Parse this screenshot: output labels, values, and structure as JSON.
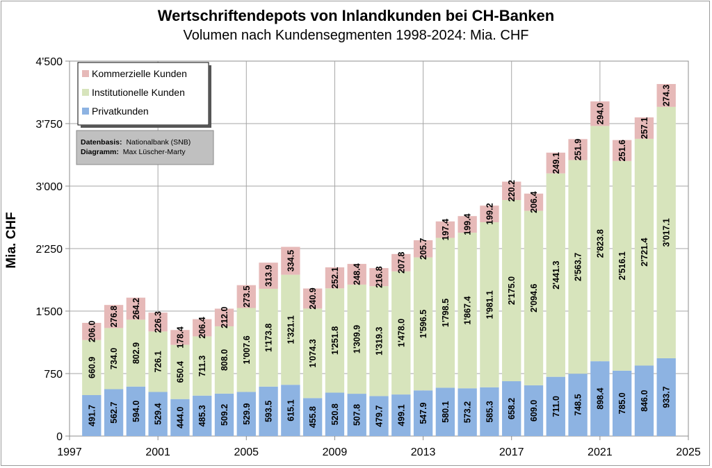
{
  "chart_data": {
    "type": "bar",
    "stacked": true,
    "title": "Wertschriftendepots von Inlandkunden bei CH-Banken",
    "subtitle": "Volumen nach Kundensegmenten 1998-2024: Mia. CHF",
    "ylabel": "Mia. CHF",
    "xlabel": "",
    "ylim": [
      0,
      4500
    ],
    "xlim": [
      1997,
      2025
    ],
    "grid": true,
    "legend_position": "top-left",
    "x_ticks": [
      "1997",
      "2001",
      "2005",
      "2009",
      "2013",
      "2017",
      "2021",
      "2025"
    ],
    "y_ticks": [
      "0",
      "750",
      "1'500",
      "2'250",
      "3'000",
      "3'750",
      "4'500"
    ],
    "x": [
      1998,
      1999,
      2000,
      2001,
      2002,
      2003,
      2004,
      2005,
      2006,
      2007,
      2008,
      2009,
      2010,
      2011,
      2012,
      2013,
      2014,
      2015,
      2016,
      2017,
      2018,
      2019,
      2020,
      2021,
      2022,
      2023,
      2024
    ],
    "series": [
      {
        "name": "Privatkunden",
        "color": "#8db3e2",
        "values": [
          491.7,
          562.7,
          594.0,
          529.4,
          444.0,
          485.3,
          509.2,
          529.9,
          593.5,
          615.1,
          455.8,
          520.8,
          507.8,
          479.7,
          499.1,
          547.9,
          580.1,
          573.2,
          585.3,
          658.2,
          609.0,
          711.0,
          748.5,
          898.4,
          785.0,
          846.0,
          933.7
        ],
        "labels": [
          "491.7",
          "562.7",
          "594.0",
          "529.4",
          "444.0",
          "485.3",
          "509.2",
          "529.9",
          "593.5",
          "615.1",
          "455.8",
          "520.8",
          "507.8",
          "479.7",
          "499.1",
          "547.9",
          "580.1",
          "573.2",
          "585.3",
          "658.2",
          "609.0",
          "711.0",
          "748.5",
          "898.4",
          "785.0",
          "846.0",
          "933.7"
        ]
      },
      {
        "name": "Institutionelle Kunden",
        "color": "#d7e4bc",
        "values": [
          660.9,
          734.0,
          802.9,
          726.1,
          650.4,
          711.3,
          808.0,
          1007.6,
          1173.8,
          1321.1,
          1074.3,
          1251.8,
          1309.9,
          1319.3,
          1478.0,
          1596.5,
          1798.5,
          1867.4,
          1981.1,
          2175.0,
          2094.6,
          2441.3,
          2563.7,
          2823.8,
          2516.1,
          2721.4,
          3017.1
        ],
        "labels": [
          "660.9",
          "734.0",
          "802.9",
          "726.1",
          "650.4",
          "711.3",
          "808.0",
          "1'007.6",
          "1'173.8",
          "1'321.1",
          "1'074.3",
          "1'251.8",
          "1'309.9",
          "1'319.3",
          "1'478.0",
          "1'596.5",
          "1'798.5",
          "1'867.4",
          "1'981.1",
          "2'175.0",
          "2'094.6",
          "2'441.3",
          "2'563.7",
          "2'823.8",
          "2'516.1",
          "2'721.4",
          "3'017.1"
        ]
      },
      {
        "name": "Kommerzielle Kunden",
        "color": "#e6b9b8",
        "values": [
          206.0,
          276.8,
          264.2,
          226.3,
          178.4,
          206.4,
          212.0,
          273.5,
          313.9,
          334.5,
          240.9,
          252.1,
          248.4,
          216.8,
          207.8,
          205.7,
          197.4,
          199.4,
          199.2,
          220.2,
          206.4,
          249.1,
          251.9,
          294.0,
          251.6,
          257.1,
          274.3
        ],
        "labels": [
          "206.0",
          "276.8",
          "264.2",
          "226.3",
          "178.4",
          "206.4",
          "212.0",
          "273.5",
          "313.9",
          "334.5",
          "240.9",
          "252.1",
          "248.4",
          "216.8",
          "207.8",
          "205.7",
          "197.4",
          "199.4",
          "199.2",
          "220.2",
          "206.4",
          "249.1",
          "251.9",
          "294.0",
          "251.6",
          "257.1",
          "274.3"
        ]
      }
    ],
    "legend": [
      "Kommerzielle Kunden",
      "Institutionelle Kunden",
      "Privatkunden"
    ],
    "source_box": {
      "line1_label": "Datenbasis:",
      "line1_value": "Nationalbank (SNB)",
      "line2_label": "Diagramm:",
      "line2_value": "Max Lüscher-Marty"
    }
  }
}
